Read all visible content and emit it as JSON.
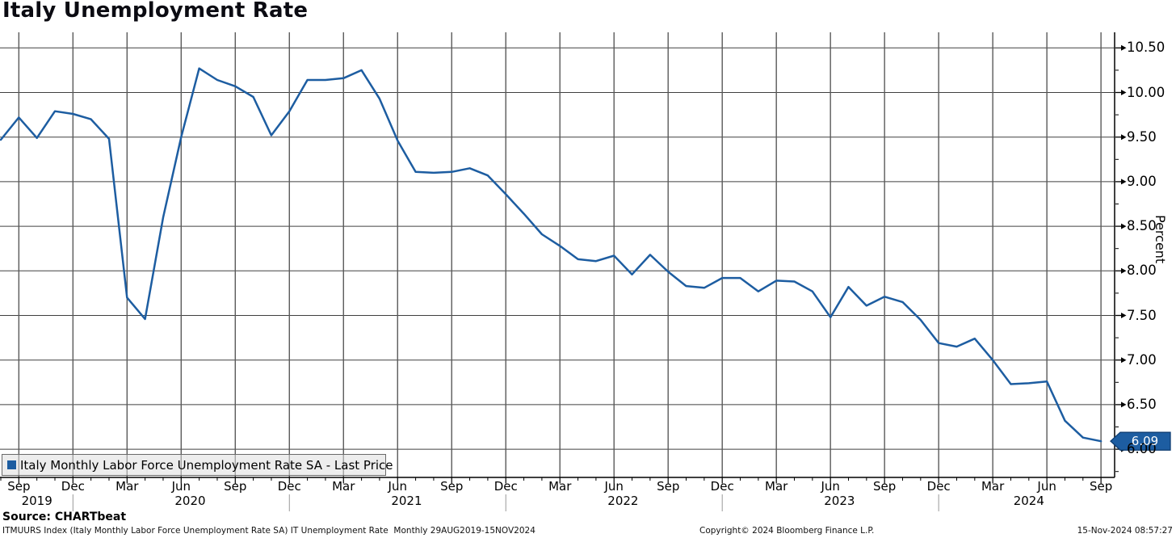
{
  "header": {
    "title": "Italy Unemployment Rate"
  },
  "legend": {
    "swatch_color": "#1d5da1",
    "label": "Italy Monthly Labor Force Unemployment Rate SA - Last Price"
  },
  "badge": {
    "value": "6.09",
    "fill": "#1d5da1",
    "border": "#0f3e73",
    "text_color": "#ffffff"
  },
  "y_axis": {
    "unit_label": "Percent"
  },
  "footer": {
    "source": "Source: CHARTbeat",
    "description": "ITMUURS Index (Italy Monthly Labor Force Unemployment Rate SA) IT Unemployment Rate  Monthly 29AUG2019-15NOV2024",
    "copyright": "Copyright© 2024 Bloomberg Finance L.P.",
    "timestamp": "15-Nov-2024 08:57:27"
  },
  "colors": {
    "line": "#1d5da1",
    "grid_vertical": "#5a5a5a",
    "grid_horizontal": "#404040",
    "axis": "#000000",
    "year_separator": "#999999"
  },
  "chart_data": {
    "type": "line",
    "title": "Italy Unemployment Rate",
    "ylabel": "Percent",
    "ylim": [
      6.0,
      10.5
    ],
    "y_major_step": 0.5,
    "y_minor_step": 0.25,
    "x_tick_interval_months": 3,
    "grid": true,
    "legend_position": "bottom-left",
    "last_price": 6.09,
    "years": [
      "2019",
      "2020",
      "2021",
      "2022",
      "2023",
      "2024"
    ],
    "x": [
      "Aug 2019",
      "Sep 2019",
      "Oct 2019",
      "Nov 2019",
      "Dec 2019",
      "Jan 2020",
      "Feb 2020",
      "Mar 2020",
      "Apr 2020",
      "May 2020",
      "Jun 2020",
      "Jul 2020",
      "Aug 2020",
      "Sep 2020",
      "Oct 2020",
      "Nov 2020",
      "Dec 2020",
      "Jan 2021",
      "Feb 2021",
      "Mar 2021",
      "Apr 2021",
      "May 2021",
      "Jun 2021",
      "Jul 2021",
      "Aug 2021",
      "Sep 2021",
      "Oct 2021",
      "Nov 2021",
      "Dec 2021",
      "Jan 2022",
      "Feb 2022",
      "Mar 2022",
      "Apr 2022",
      "May 2022",
      "Jun 2022",
      "Jul 2022",
      "Aug 2022",
      "Sep 2022",
      "Oct 2022",
      "Nov 2022",
      "Dec 2022",
      "Jan 2023",
      "Feb 2023",
      "Mar 2023",
      "Apr 2023",
      "May 2023",
      "Jun 2023",
      "Jul 2023",
      "Aug 2023",
      "Sep 2023",
      "Oct 2023",
      "Nov 2023",
      "Dec 2023",
      "Jan 2024",
      "Feb 2024",
      "Mar 2024",
      "Apr 2024",
      "May 2024",
      "Jun 2024",
      "Jul 2024",
      "Aug 2024",
      "Sep 2024"
    ],
    "series": [
      {
        "name": "Italy Monthly Labor Force Unemployment Rate SA - Last Price",
        "color": "#1d5da1",
        "values": [
          9.47,
          9.72,
          9.49,
          9.79,
          9.76,
          9.7,
          9.48,
          7.7,
          7.46,
          8.6,
          9.5,
          10.27,
          10.14,
          10.07,
          9.95,
          9.52,
          9.79,
          10.14,
          10.14,
          10.16,
          10.25,
          9.93,
          9.46,
          9.11,
          9.1,
          9.11,
          9.15,
          9.07,
          8.86,
          8.64,
          8.41,
          8.28,
          8.13,
          8.11,
          8.17,
          7.96,
          8.18,
          7.99,
          7.83,
          7.81,
          7.92,
          7.92,
          7.77,
          7.89,
          7.88,
          7.77,
          7.48,
          7.82,
          7.61,
          7.71,
          7.65,
          7.45,
          7.19,
          7.15,
          7.24,
          7.0,
          6.73,
          6.74,
          6.76,
          6.32,
          6.13,
          6.09
        ]
      }
    ]
  }
}
